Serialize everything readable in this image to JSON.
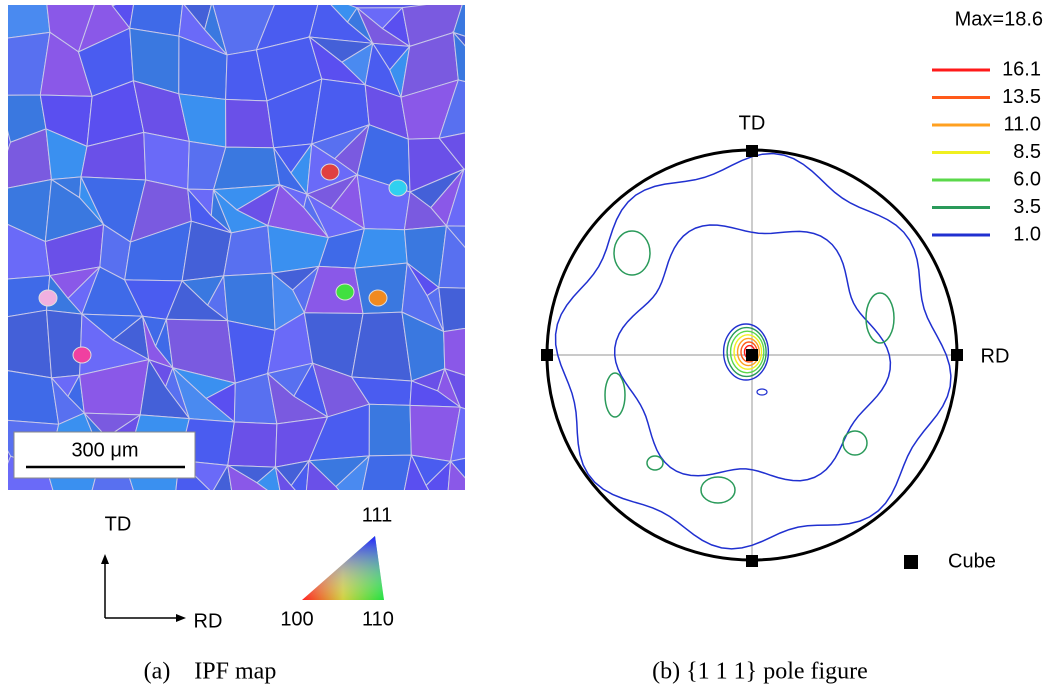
{
  "ipf_map": {
    "scale_bar": "300 μm",
    "axes": {
      "vertical": "TD",
      "horizontal": "RD"
    },
    "triangle": {
      "top": "111",
      "left": "100",
      "right": "110"
    },
    "caption": "(a)    IPF map"
  },
  "pole_figure": {
    "max_label": "Max=18.6",
    "levels": [
      {
        "label": "16.1",
        "color": "#ff1a1a"
      },
      {
        "label": "13.5",
        "color": "#ff5a1a"
      },
      {
        "label": "11.0",
        "color": "#ffa020"
      },
      {
        "label": "8.5",
        "color": "#f0f020"
      },
      {
        "label": "6.0",
        "color": "#5ad84a"
      },
      {
        "label": "3.5",
        "color": "#2a9a5a"
      },
      {
        "label": "1.0",
        "color": "#2030d0"
      }
    ],
    "labels": {
      "top": "TD",
      "right": "RD"
    },
    "legend_marker": "Cube",
    "caption": "(b) {1 1 1} pole figure"
  }
}
